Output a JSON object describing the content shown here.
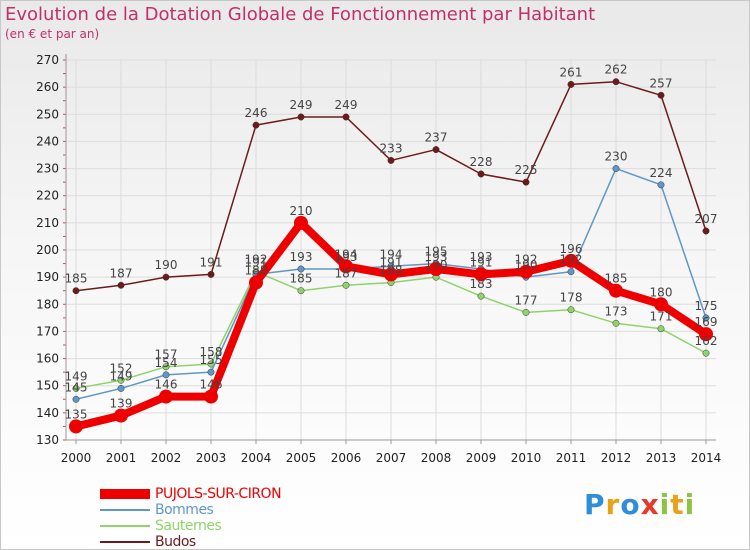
{
  "colors": {
    "title": "#c0306a",
    "grid": "#dcdcdc",
    "axis": "#999999"
  },
  "chart_data": {
    "type": "line",
    "title": "Evolution de la Dotation Globale de Fonctionnement par Habitant",
    "subtitle": "(en € et par an)",
    "x": [
      "2000",
      "2001",
      "2002",
      "2003",
      "2004",
      "2005",
      "2006",
      "2007",
      "2008",
      "2009",
      "2010",
      "2011",
      "2012",
      "2013",
      "2014"
    ],
    "ylim": [
      130,
      270
    ],
    "yticks": [
      130,
      140,
      150,
      160,
      170,
      180,
      190,
      200,
      210,
      220,
      230,
      240,
      250,
      260,
      270
    ],
    "grid": true,
    "legend_position": "bottom-left",
    "series": [
      {
        "name": "Budos",
        "color": "#6e1a1a",
        "values": [
          185,
          187,
          190,
          191,
          246,
          249,
          249,
          233,
          237,
          228,
          225,
          261,
          262,
          257,
          207
        ],
        "labels": [
          "185",
          "187",
          "190",
          "191",
          "246",
          "249",
          "249",
          "233",
          "237",
          "228",
          "225",
          "261",
          "262",
          "257",
          "207"
        ]
      },
      {
        "name": "Sauternes",
        "color": "#8fd46a",
        "values": [
          149,
          152,
          157,
          158,
          192,
          185,
          187,
          188,
          190,
          183,
          177,
          178,
          173,
          171,
          162
        ],
        "labels": [
          "149",
          "152",
          "157",
          "158",
          "192",
          "185",
          "187",
          "188",
          "190",
          "183",
          "177",
          "178",
          "173",
          "171",
          "162"
        ]
      },
      {
        "name": "Bommes",
        "color": "#5f97c8",
        "values": [
          145,
          149,
          154,
          155,
          191,
          193,
          193,
          194,
          195,
          193,
          190,
          192,
          230,
          224,
          175
        ],
        "labels": [
          "145",
          "149",
          "154",
          "155",
          "191",
          "193",
          "193",
          "194",
          "195",
          "193",
          "190",
          "192",
          "230",
          "224",
          "175"
        ]
      },
      {
        "name": "PUJOLS-SUR-CIRON",
        "color": "#ee0000",
        "values": [
          135,
          139,
          146,
          146,
          188,
          210,
          194,
          191,
          193,
          191,
          192,
          196,
          185,
          180,
          169
        ],
        "labels": [
          "135",
          "139",
          "146",
          "146",
          "188",
          "210",
          "194",
          "191",
          "193",
          "191",
          "192",
          "196",
          "185",
          "180",
          "169"
        ]
      }
    ],
    "legend": [
      {
        "name": "PUJOLS-SUR-CIRON",
        "color": "#ee0000"
      },
      {
        "name": "Bommes",
        "color": "#5f97c8"
      },
      {
        "name": "Sauternes",
        "color": "#8fd46a"
      },
      {
        "name": "Budos",
        "color": "#6e1a1a"
      }
    ]
  },
  "logo": {
    "letters": [
      "P",
      "r",
      "o",
      "x",
      "i",
      "t",
      "i"
    ],
    "colors": [
      "#2e8fd8",
      "#e8a21a",
      "#2e8fd8",
      "#e53a2a",
      "#8bc43f",
      "#e8a21a",
      "#8bc43f"
    ]
  }
}
